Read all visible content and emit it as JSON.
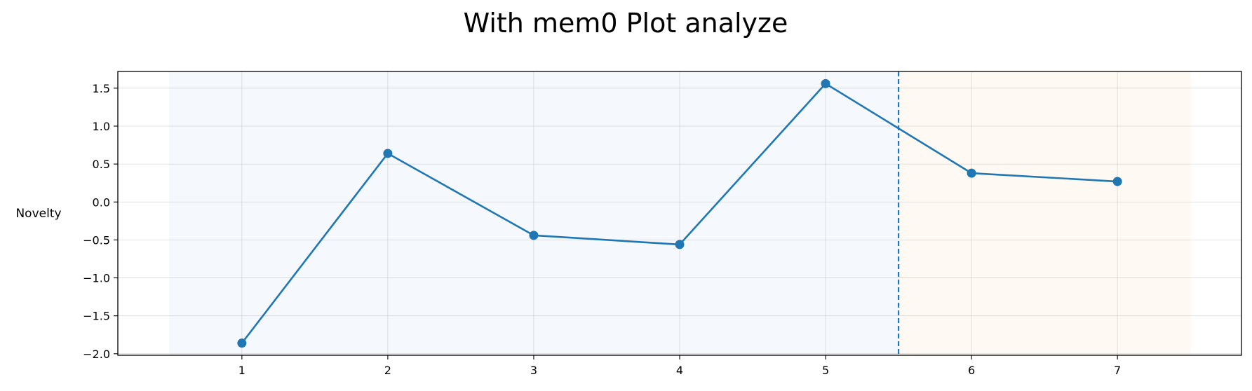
{
  "chart_data": {
    "type": "line",
    "title": "With mem0 Plot analyze",
    "xlabel": "",
    "ylabel": "Novelty",
    "x": [
      1,
      2,
      3,
      4,
      5,
      6,
      7
    ],
    "series": [
      {
        "values": [
          -1.86,
          0.64,
          -0.44,
          -0.56,
          1.56,
          0.38,
          0.27
        ],
        "color": "#1f77b4",
        "marker": "circle"
      }
    ],
    "xticks": [
      "1",
      "2",
      "3",
      "4",
      "5",
      "6",
      "7"
    ],
    "yticks": [
      "1.5",
      "1.0",
      "0.5",
      "0.0",
      "−0.5",
      "−1.0",
      "−1.5",
      "−2.0"
    ],
    "ytick_values": [
      1.5,
      1.0,
      0.5,
      0.0,
      -0.5,
      -1.0,
      -1.5,
      -2.0
    ],
    "xlim": [
      0.15,
      7.85
    ],
    "ylim": [
      -2.02,
      1.72
    ],
    "grid": true,
    "regions": [
      {
        "x_from": 0.5,
        "x_to": 5.5,
        "color": "#f5f8fc"
      },
      {
        "x_from": 5.5,
        "x_to": 7.5,
        "color": "#fefaf3"
      }
    ],
    "vline": {
      "x": 5.5,
      "style": "dashed",
      "color": "#1f77b4"
    }
  }
}
